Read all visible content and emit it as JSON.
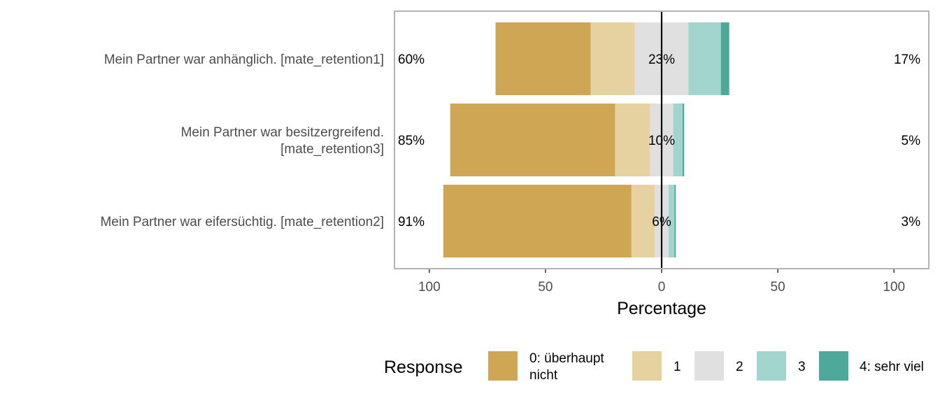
{
  "chart_data": {
    "type": "bar",
    "orientation": "horizontal-diverging",
    "xlabel": "Percentage",
    "xlim": [
      -115,
      115
    ],
    "xticks": [
      -100,
      -50,
      0,
      50,
      100
    ],
    "xtick_labels": [
      "100",
      "50",
      "0",
      "50",
      "100"
    ],
    "grid": true,
    "legend_position": "bottom",
    "legend_title": "Response",
    "responses": [
      {
        "name": "0: überhaupt nicht",
        "lines": [
          "0: überhaupt",
          "nicht"
        ],
        "color": "#cfa653"
      },
      {
        "name": "1",
        "lines": [
          "1"
        ],
        "color": "#e6d2a1"
      },
      {
        "name": "2",
        "lines": [
          "2"
        ],
        "color": "#e0e0e0"
      },
      {
        "name": "3",
        "lines": [
          "3"
        ],
        "color": "#a1d5cd"
      },
      {
        "name": "4: sehr viel",
        "lines": [
          "4: sehr viel"
        ],
        "color": "#4ea99b"
      }
    ],
    "items": [
      {
        "label_lines": [
          "Mein Partner war anhänglich. [mate_retention1]"
        ],
        "values": [
          41,
          19,
          23,
          14,
          3.6
        ],
        "low_pct": "60%",
        "neutral_pct": "23%",
        "high_pct": "17%"
      },
      {
        "label_lines": [
          "Mein Partner war besitzergreifend.",
          "[mate_retention3]"
        ],
        "values": [
          71,
          15,
          10,
          4,
          0.7
        ],
        "low_pct": "85%",
        "neutral_pct": "10%",
        "high_pct": "5%"
      },
      {
        "label_lines": [
          "Mein Partner war eifersüchtig. [mate_retention2]"
        ],
        "values": [
          81,
          10,
          6,
          2.5,
          0.6
        ],
        "low_pct": "91%",
        "neutral_pct": "6%",
        "high_pct": "3%"
      }
    ]
  }
}
